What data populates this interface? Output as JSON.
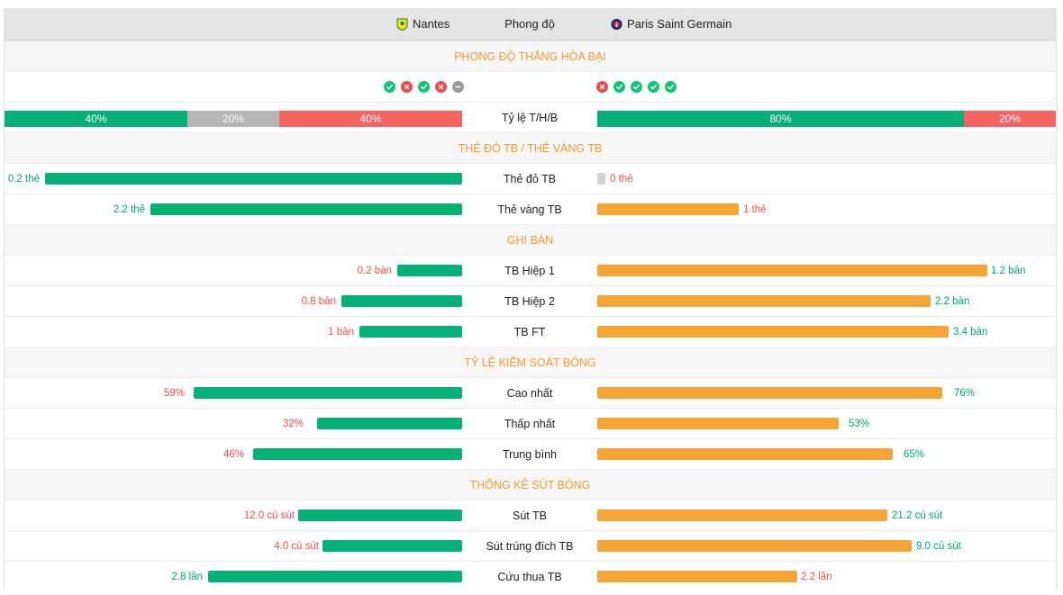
{
  "header": {
    "home_team": "Nantes",
    "title": "Phong độ",
    "away_team": "Paris Saint Germain",
    "home_logo_icon": "canary-shield-icon",
    "away_logo_icon": "eiffel-badge-icon"
  },
  "colors": {
    "green": "#05b174",
    "orange": "#f5a535",
    "red": "#ef4f51",
    "grey": "#b6b6b6",
    "section": "#f39a34"
  },
  "form": {
    "section_title": "PHONG ĐỘ THẮNG HÒA BẠI",
    "home_results": [
      "W",
      "L",
      "W",
      "L",
      "D"
    ],
    "away_results": [
      "L",
      "W",
      "W",
      "W",
      "W"
    ],
    "ratio_label": "Tỷ lệ T/H/B",
    "home_ratio": {
      "win": "40%",
      "draw": "20%",
      "loss": "40%",
      "win_frac": 0.4,
      "draw_frac": 0.2,
      "loss_frac": 0.4
    },
    "away_ratio": {
      "win": "80%",
      "loss": "20%",
      "win_frac": 0.8,
      "loss_frac": 0.2
    }
  },
  "cards": {
    "section_title": "THẺ ĐỎ TB / THẺ VÀNG TB",
    "red": {
      "label": "Thẻ đỏ TB",
      "home": "0.2 thẻ",
      "away": "0 thẻ",
      "home_value": 0.2,
      "away_value": 0
    },
    "yellow": {
      "label": "Thẻ vàng TB",
      "home": "2.2 thẻ",
      "away": "1 thẻ",
      "home_value": 2.2,
      "away_value": 1
    }
  },
  "goals": {
    "section_title": "GHI BÀN",
    "h1": {
      "label": "TB Hiệp 1",
      "home": "0.2 bàn",
      "away": "1.2 bàn",
      "home_value": 0.2,
      "away_value": 1.2
    },
    "h2": {
      "label": "TB Hiệp 2",
      "home": "0.8 bàn",
      "away": "2.2 bàn",
      "home_value": 0.8,
      "away_value": 2.2
    },
    "ft": {
      "label": "TB FT",
      "home": "1 bàn",
      "away": "3.4 bàn",
      "home_value": 1,
      "away_value": 3.4
    }
  },
  "possession": {
    "section_title": "TỶ LỆ KIỂM SOÁT BÓNG",
    "max": {
      "label": "Cao nhất",
      "home": "59%",
      "away": "76%",
      "home_value": 59,
      "away_value": 76
    },
    "min": {
      "label": "Thấp nhất",
      "home": "32%",
      "away": "53%",
      "home_value": 32,
      "away_value": 53
    },
    "avg": {
      "label": "Trung bình",
      "home": "46%",
      "away": "65%",
      "home_value": 46,
      "away_value": 65
    }
  },
  "shots": {
    "section_title": "THỐNG KÊ SÚT BÓNG",
    "shots": {
      "label": "Sút TB",
      "home": "12.0 cú sút",
      "away": "21.2 cú sút",
      "home_value": 12.0,
      "away_value": 21.2
    },
    "on_target": {
      "label": "Sút trúng đích TB",
      "home": "4.0 cú sút",
      "away": "9.0 cú sút",
      "home_value": 4.0,
      "away_value": 9.0
    },
    "conceded": {
      "label": "Cứu thua TB",
      "home": "2.8 lần",
      "away": "2.2 lần",
      "home_value": 2.8,
      "away_value": 2.2
    }
  }
}
